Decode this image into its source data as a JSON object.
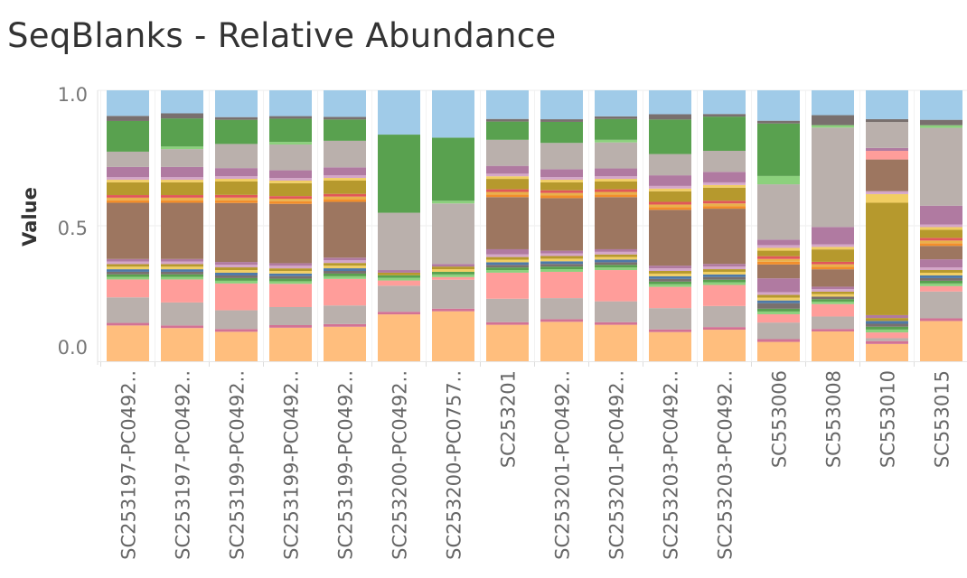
{
  "chart_data": {
    "type": "bar",
    "stacked": true,
    "title": "SeqBlanks - Relative Abundance",
    "xlabel": "",
    "ylabel": "Value",
    "ylim": [
      0,
      1.0
    ],
    "yticks": [
      "0.0",
      "0.5",
      "1.0"
    ],
    "grid": true,
    "categories": [
      "SC253197-PC0492..",
      "SC253197-PC0492..",
      "SC253199-PC0492..",
      "SC253199-PC0492..",
      "SC253199-PC0492..",
      "SC253200-PC0492..",
      "SC253200-PC0757..",
      "SC253201",
      "SC253201-PC0492..",
      "SC253201-PC0492..",
      "SC253203-PC0492..",
      "SC253203-PC0492..",
      "SC553006",
      "SC553008",
      "SC553010",
      "SC553015"
    ],
    "series": [
      {
        "color": "#ffbe7d",
        "values": [
          0.14,
          0.13,
          0.11,
          0.13,
          0.13,
          0.18,
          0.19,
          0.14,
          0.15,
          0.14,
          0.11,
          0.12,
          0.07,
          0.12,
          0.06,
          0.15
        ]
      },
      {
        "color": "#d37295",
        "values": [
          0.01,
          0.01,
          0.01,
          0.01,
          0.01,
          0.01,
          0.01,
          0.01,
          0.01,
          0.01,
          0.01,
          0.01,
          0.01,
          0.01,
          0.01,
          0.01
        ]
      },
      {
        "color": "#bab0ac",
        "values": [
          0.1,
          0.09,
          0.07,
          0.07,
          0.07,
          0.1,
          0.11,
          0.09,
          0.08,
          0.08,
          0.08,
          0.08,
          0.06,
          0.05,
          0.01,
          0.1
        ]
      },
      {
        "color": "#ff9d9a",
        "values": [
          0.07,
          0.09,
          0.1,
          0.09,
          0.1,
          0.02,
          0.01,
          0.1,
          0.1,
          0.12,
          0.08,
          0.08,
          0.03,
          0.05,
          0.02,
          0.02
        ]
      },
      {
        "color": "#8cd17d",
        "values": [
          0.01,
          0.01,
          0.01,
          0.01,
          0.01,
          0.01,
          0.01,
          0.01,
          0.01,
          0.01,
          0.01,
          0.01,
          0.01,
          0.01,
          0.01,
          0.01
        ]
      },
      {
        "color": "#59a14f",
        "values": [
          0.01,
          0.01,
          0.01,
          0.01,
          0.01,
          0.01,
          0.01,
          0.01,
          0.01,
          0.01,
          0.01,
          0.01,
          0.01,
          0.01,
          0.01,
          0.01
        ]
      },
      {
        "color": "#79706e",
        "values": [
          0.01,
          0.01,
          0.01,
          0.01,
          0.01,
          0.0,
          0.0,
          0.01,
          0.01,
          0.01,
          0.01,
          0.01,
          0.02,
          0.01,
          0.01,
          0.01
        ]
      },
      {
        "color": "#4e79a7",
        "values": [
          0.01,
          0.01,
          0.01,
          0.01,
          0.01,
          0.0,
          0.0,
          0.01,
          0.01,
          0.01,
          0.01,
          0.01,
          0.01,
          0.0,
          0.01,
          0.01
        ]
      },
      {
        "color": "#f1ce63",
        "values": [
          0.01,
          0.01,
          0.01,
          0.01,
          0.01,
          0.0,
          0.01,
          0.01,
          0.01,
          0.01,
          0.01,
          0.01,
          0.01,
          0.01,
          0.0,
          0.01
        ]
      },
      {
        "color": "#b6992d",
        "values": [
          0.01,
          0.01,
          0.01,
          0.01,
          0.01,
          0.01,
          0.01,
          0.01,
          0.01,
          0.01,
          0.01,
          0.01,
          0.01,
          0.01,
          0.01,
          0.01
        ]
      },
      {
        "color": "#d4a6c8",
        "values": [
          0.01,
          0.01,
          0.01,
          0.01,
          0.01,
          0.0,
          0.0,
          0.01,
          0.01,
          0.01,
          0.01,
          0.01,
          0.01,
          0.01,
          0.0,
          0.01
        ]
      },
      {
        "color": "#b07aa1",
        "values": [
          0.01,
          0.01,
          0.01,
          0.01,
          0.01,
          0.01,
          0.0,
          0.02,
          0.01,
          0.01,
          0.01,
          0.01,
          0.05,
          0.01,
          0.01,
          0.03
        ]
      },
      {
        "color": "#9d7660",
        "values": [
          0.22,
          0.22,
          0.22,
          0.23,
          0.21,
          0.0,
          0.0,
          0.2,
          0.2,
          0.2,
          0.21,
          0.21,
          0.05,
          0.07,
          0.0,
          0.05
        ]
      },
      {
        "color": "#f28e2b",
        "values": [
          0.01,
          0.01,
          0.01,
          0.01,
          0.01,
          0.0,
          0.0,
          0.01,
          0.01,
          0.01,
          0.01,
          0.01,
          0.01,
          0.01,
          0.0,
          0.01
        ]
      },
      {
        "color": "#e9b14c",
        "values": [
          0.01,
          0.01,
          0.01,
          0.01,
          0.01,
          0.0,
          0.0,
          0.01,
          0.01,
          0.01,
          0.01,
          0.01,
          0.01,
          0.01,
          0.0,
          0.01
        ]
      },
      {
        "color": "#e15759",
        "values": [
          0.01,
          0.01,
          0.01,
          0.01,
          0.01,
          0.0,
          0.0,
          0.01,
          0.01,
          0.01,
          0.01,
          0.01,
          0.01,
          0.01,
          0.0,
          0.01
        ]
      },
      {
        "color": "#b6992d",
        "values": [
          0.05,
          0.05,
          0.05,
          0.05,
          0.05,
          0.0,
          0.0,
          0.04,
          0.03,
          0.03,
          0.04,
          0.05,
          0.02,
          0.05,
          0.39,
          0.03
        ]
      },
      {
        "color": "#f1ce63",
        "values": [
          0.01,
          0.01,
          0.01,
          0.01,
          0.01,
          0.0,
          0.0,
          0.01,
          0.01,
          0.01,
          0.01,
          0.01,
          0.01,
          0.01,
          0.03,
          0.01
        ]
      },
      {
        "color": "#d4a6c8",
        "values": [
          0.01,
          0.01,
          0.01,
          0.01,
          0.01,
          0.0,
          0.0,
          0.01,
          0.01,
          0.01,
          0.01,
          0.01,
          0.01,
          0.01,
          0.01,
          0.01
        ]
      },
      {
        "color": "#9d7660",
        "values": [
          0.0,
          0.0,
          0.0,
          0.0,
          0.0,
          0.0,
          0.0,
          0.0,
          0.0,
          0.0,
          0.0,
          0.0,
          0.0,
          0.0,
          0.11,
          0.0
        ]
      },
      {
        "color": "#ff9d9a",
        "values": [
          0.0,
          0.0,
          0.0,
          0.0,
          0.0,
          0.0,
          0.0,
          0.0,
          0.0,
          0.0,
          0.0,
          0.0,
          0.0,
          0.0,
          0.03,
          0.0
        ]
      },
      {
        "color": "#b07aa1",
        "values": [
          0.04,
          0.04,
          0.03,
          0.03,
          0.03,
          0.0,
          0.01,
          0.03,
          0.03,
          0.03,
          0.04,
          0.04,
          0.02,
          0.07,
          0.01,
          0.07
        ]
      },
      {
        "color": "#bab0ac",
        "values": [
          0.06,
          0.07,
          0.09,
          0.1,
          0.1,
          0.22,
          0.23,
          0.1,
          0.1,
          0.1,
          0.08,
          0.08,
          0.2,
          0.4,
          0.09,
          0.29
        ]
      },
      {
        "color": "#8cd17d",
        "values": [
          0.0,
          0.01,
          0.0,
          0.01,
          0.0,
          0.0,
          0.01,
          0.0,
          0.0,
          0.01,
          0.0,
          0.0,
          0.03,
          0.01,
          0.0,
          0.01
        ]
      },
      {
        "color": "#59a14f",
        "values": [
          0.12,
          0.11,
          0.09,
          0.09,
          0.08,
          0.3,
          0.24,
          0.07,
          0.08,
          0.08,
          0.13,
          0.13,
          0.19,
          0.0,
          0.0,
          0.0
        ]
      },
      {
        "color": "#79706e",
        "values": [
          0.02,
          0.02,
          0.01,
          0.01,
          0.01,
          0.0,
          0.0,
          0.01,
          0.01,
          0.01,
          0.02,
          0.01,
          0.01,
          0.04,
          0.01,
          0.02
        ]
      },
      {
        "color": "#e15759",
        "values": [
          0.0,
          0.0,
          0.0,
          0.0,
          0.0,
          0.0,
          0.0,
          0.0,
          0.0,
          0.0,
          0.0,
          0.0,
          0.0,
          0.0,
          0.0,
          0.0
        ]
      },
      {
        "color": "#a0cbe8",
        "values": [
          0.1,
          0.09,
          0.1,
          0.1,
          0.1,
          0.17,
          0.18,
          0.11,
          0.11,
          0.1,
          0.09,
          0.09,
          0.11,
          0.1,
          0.1,
          0.11
        ]
      }
    ]
  }
}
